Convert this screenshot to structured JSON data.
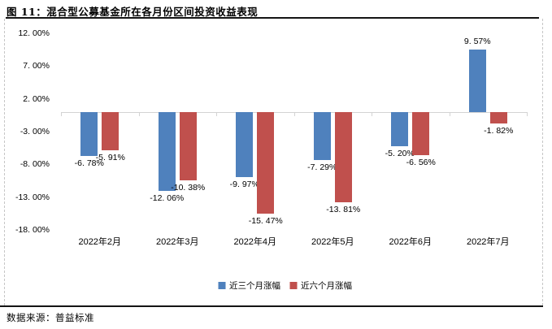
{
  "title": "图 11：混合型公募基金所在各月份区间投资收益表现",
  "footer": {
    "source": "数据来源：普益标准"
  },
  "colors": {
    "series1": "#4F81BD",
    "series2": "#C0504D",
    "axis_line": "#d3d3d3",
    "rule": "#141414",
    "cell_border": "#c6c6c6"
  },
  "chart_data": {
    "type": "bar",
    "title": "图 11：混合型公募基金所在各月份区间投资收益表现",
    "categories": [
      "2022年2月",
      "2022年3月",
      "2022年4月",
      "2022年5月",
      "2022年6月",
      "2022年7月"
    ],
    "series": [
      {
        "name": "近三个月涨幅",
        "color": "#4F81BD",
        "values": [
          -6.78,
          -12.06,
          -9.97,
          -7.29,
          -5.2,
          9.57
        ],
        "labels": [
          "-6. 78%",
          "-12. 06%",
          "-9. 97%",
          "-7. 29%",
          "-5. 20%",
          "9. 57%"
        ]
      },
      {
        "name": "近六个月涨幅",
        "color": "#C0504D",
        "values": [
          -5.91,
          -10.38,
          -15.47,
          -13.81,
          -6.56,
          -1.82
        ],
        "labels": [
          "-5. 91%",
          "-10. 38%",
          "-15. 47%",
          "-13. 81%",
          "-6. 56%",
          "-1. 82%"
        ]
      }
    ],
    "xlabel": "",
    "ylabel": "",
    "ylim": [
      -18,
      12
    ],
    "ytick_step": 5,
    "yticks": [
      12,
      7,
      2,
      -3,
      -8,
      -13,
      -18
    ],
    "ytick_labels": [
      "12. 00%",
      "7. 00%",
      "2. 00%",
      "-3. 00%",
      "-8. 00%",
      "-13. 00%",
      "-18. 00%"
    ],
    "grid": false,
    "legend_position": "bottom"
  }
}
